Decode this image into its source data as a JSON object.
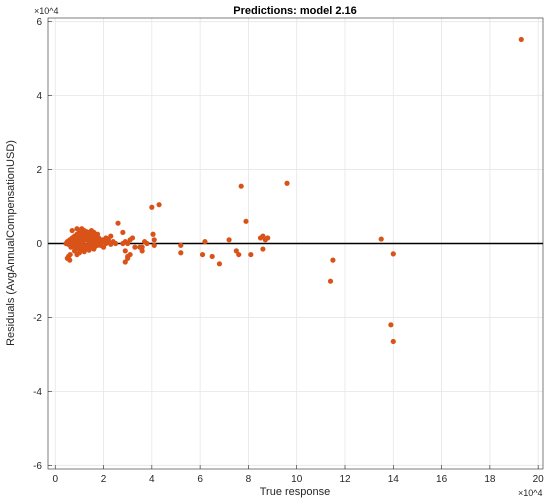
{
  "chart_data": {
    "type": "scatter",
    "title": "Predictions: model 2.16",
    "xlabel": "True response",
    "ylabel": "Residuals (AvgAnnualCompensationUSD)",
    "x_exponent_label": "×10^4",
    "y_exponent_label": "×10^4",
    "x_scale_factor": 10000,
    "y_scale_factor": 10000,
    "xlim": [
      -0.3,
      20.2
    ],
    "ylim": [
      -6.1,
      6.1
    ],
    "xticks": [
      0,
      2,
      4,
      6,
      8,
      10,
      12,
      14,
      16,
      18,
      20
    ],
    "yticks": [
      -6,
      -4,
      -2,
      0,
      2,
      4,
      6
    ],
    "grid": true,
    "reference_line_y": 0,
    "marker_color": "#d95319",
    "line_color": "#000000",
    "series": [
      {
        "values_x": [
          0.45,
          0.5,
          0.55,
          0.6,
          0.65,
          0.7,
          0.72,
          0.75,
          0.78,
          0.8,
          0.82,
          0.85,
          0.88,
          0.9,
          0.92,
          0.95,
          0.98,
          1.0,
          1.02,
          1.05,
          1.08,
          1.1,
          1.12,
          1.15,
          1.18,
          1.2,
          1.22,
          1.25,
          1.28,
          1.3,
          1.32,
          1.35,
          1.38,
          1.4,
          1.42,
          1.45,
          1.48,
          1.5,
          1.52,
          1.55,
          1.58,
          1.6,
          1.62,
          1.65,
          1.68,
          1.7,
          1.72,
          1.75,
          1.78,
          1.8,
          1.82,
          1.85,
          1.88,
          1.9,
          1.95,
          2.0,
          0.6,
          0.7,
          0.8,
          0.9,
          1.0,
          1.1,
          1.2,
          1.3,
          1.4,
          1.5,
          1.6,
          1.7,
          1.8,
          0.65,
          0.75,
          0.85,
          0.95,
          1.05,
          1.15,
          1.25,
          1.35,
          1.45,
          1.55,
          1.65,
          1.75,
          1.85,
          0.5,
          0.6,
          0.7,
          0.8,
          0.9,
          1.0,
          1.1,
          1.2,
          1.3,
          1.4,
          1.5,
          0.7,
          0.9,
          1.1,
          1.3,
          1.5,
          1.7,
          0.8,
          1.0,
          1.2,
          1.4,
          1.6,
          1.1,
          1.3,
          1.5,
          0.9,
          1.7,
          1.9,
          2.1,
          2.2,
          2.3,
          2.4,
          2.5,
          2.1,
          2.2,
          2.3,
          2.4,
          2.0,
          0.5,
          0.55,
          0.6,
          0.62,
          2.6,
          2.8,
          2.9,
          3.0,
          3.1,
          3.2,
          3.3,
          2.9,
          3.0,
          3.1,
          2.8,
          2.9,
          3.0,
          3.5,
          3.6,
          3.7,
          3.8,
          3.6,
          4.0,
          4.05,
          4.1,
          4.1,
          4.3,
          5.2,
          5.2,
          6.1,
          6.2,
          6.5,
          6.8,
          7.2,
          7.5,
          7.6,
          7.7,
          7.9,
          8.1,
          8.5,
          8.6,
          8.7,
          8.8,
          8.6,
          9.6,
          11.4,
          11.5,
          13.5,
          13.9,
          14.0,
          14.0,
          19.3
        ],
        "values_y": [
          0.0,
          0.05,
          -0.02,
          0.04,
          0.08,
          -0.05,
          0.1,
          0.02,
          0.12,
          -0.08,
          0.06,
          0.15,
          -0.1,
          0.2,
          0.03,
          0.18,
          -0.12,
          0.25,
          0.0,
          0.22,
          -0.15,
          0.3,
          0.05,
          0.28,
          -0.1,
          0.35,
          0.1,
          0.3,
          -0.05,
          0.25,
          0.15,
          0.2,
          -0.1,
          0.3,
          0.05,
          0.15,
          -0.05,
          0.25,
          0.1,
          0.2,
          -0.08,
          0.3,
          0.05,
          0.15,
          -0.05,
          0.2,
          0.1,
          0.25,
          0.0,
          0.15,
          0.08,
          0.1,
          -0.05,
          0.05,
          0.1,
          0.05,
          0.1,
          0.15,
          0.2,
          0.25,
          0.3,
          0.2,
          0.15,
          0.1,
          0.2,
          0.25,
          0.15,
          0.1,
          0.05,
          -0.1,
          -0.05,
          -0.15,
          -0.1,
          -0.2,
          -0.05,
          -0.1,
          -0.15,
          -0.05,
          -0.1,
          -0.08,
          -0.05,
          -0.03,
          0.02,
          0.04,
          0.06,
          0.08,
          0.1,
          0.12,
          0.14,
          0.16,
          0.18,
          0.2,
          0.22,
          0.35,
          0.4,
          0.38,
          0.32,
          0.28,
          0.22,
          -0.2,
          -0.25,
          -0.22,
          -0.18,
          -0.15,
          0.4,
          0.3,
          0.35,
          -0.3,
          0.05,
          0.02,
          0.0,
          0.05,
          -0.02,
          0.03,
          0.0,
          0.15,
          0.1,
          0.2,
          0.05,
          -0.1,
          -0.4,
          -0.35,
          -0.45,
          -0.3,
          0.55,
          0.0,
          -0.2,
          -0.35,
          0.1,
          0.15,
          -0.1,
          -0.5,
          -0.4,
          -0.3,
          0.3,
          0.05,
          0.0,
          -0.1,
          -0.2,
          0.05,
          0.0,
          -0.1,
          0.98,
          0.25,
          0.1,
          -0.05,
          1.05,
          -0.05,
          -0.25,
          -0.3,
          0.05,
          -0.35,
          -0.55,
          0.1,
          -0.2,
          -0.3,
          1.55,
          0.6,
          -0.3,
          0.15,
          0.2,
          0.1,
          0.15,
          -0.15,
          1.63,
          -1.02,
          -0.45,
          0.12,
          -2.2,
          -2.65,
          -0.28,
          5.52
        ]
      }
    ]
  }
}
